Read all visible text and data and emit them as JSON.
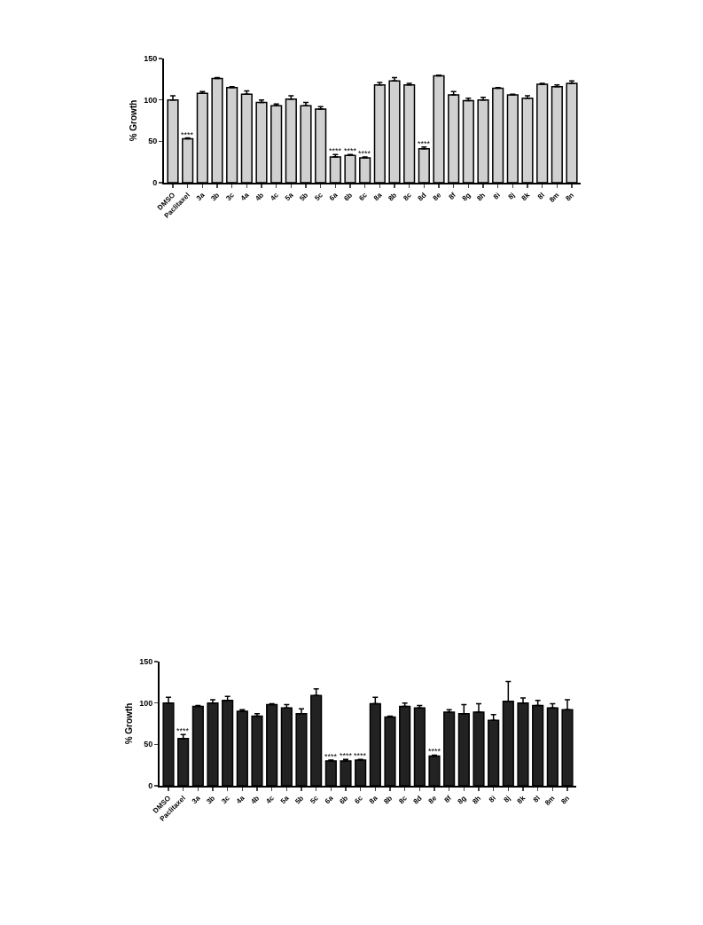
{
  "chart_data": [
    {
      "type": "bar",
      "ylabel": "% Growth",
      "categories": [
        "DMSO",
        "Paclitaxel",
        "3a",
        "3b",
        "3c",
        "4a",
        "4b",
        "4c",
        "5a",
        "5b",
        "5c",
        "6a",
        "6b",
        "6c",
        "8a",
        "8b",
        "8c",
        "8d",
        "8e",
        "8f",
        "8g",
        "8h",
        "8i",
        "8j",
        "8k",
        "8l",
        "8m",
        "8n"
      ],
      "series": [
        {
          "color": "#d0d0d0",
          "values": [
            100,
            53,
            108,
            126,
            115,
            107,
            97,
            93,
            101,
            93,
            89,
            31,
            33,
            30,
            118,
            123,
            118,
            41,
            129,
            106,
            99,
            100,
            114,
            106,
            102,
            119,
            116,
            120
          ],
          "errors": [
            [
              100,
              105
            ],
            [
              53,
              54
            ],
            [
              108,
              110
            ],
            [
              126,
              127
            ],
            [
              115,
              116
            ],
            [
              107,
              111
            ],
            [
              97,
              100
            ],
            [
              93,
              95
            ],
            [
              101,
              105
            ],
            [
              93,
              97
            ],
            [
              89,
              92
            ],
            [
              31,
              34
            ],
            [
              33,
              34
            ],
            [
              30,
              31
            ],
            [
              118,
              121
            ],
            [
              123,
              127
            ],
            [
              118,
              120
            ],
            [
              41,
              43
            ],
            [
              129,
              130
            ],
            [
              106,
              110
            ],
            [
              99,
              102
            ],
            [
              100,
              103
            ],
            [
              114,
              115
            ],
            [
              106,
              107
            ],
            [
              102,
              105
            ],
            [
              119,
              120
            ],
            [
              116,
              118
            ],
            [
              120,
              123
            ]
          ]
        }
      ],
      "ylim": [
        0,
        150
      ],
      "yticks": [
        0,
        50,
        100,
        150
      ],
      "grid": false,
      "annotations": [
        {
          "text": "****",
          "x": "Paclitaxel",
          "y": 54
        },
        {
          "text": "****",
          "x": "6a",
          "y": 34
        },
        {
          "text": "****",
          "x": "6b",
          "y": 34
        },
        {
          "text": "****",
          "x": "6c",
          "y": 31
        },
        {
          "text": "****",
          "x": "8d",
          "y": 43
        }
      ]
    },
    {
      "type": "bar",
      "ylabel": "% Growth",
      "categories": [
        "DMSO",
        "Paclitaxel",
        "3a",
        "3b",
        "3c",
        "4a",
        "4b",
        "4c",
        "5a",
        "5b",
        "5c",
        "6a",
        "6b",
        "6c",
        "8a",
        "8b",
        "8c",
        "8d",
        "8e",
        "8f",
        "8g",
        "8h",
        "8i",
        "8j",
        "8k",
        "8l",
        "8m",
        "8n"
      ],
      "series": [
        {
          "color": "#222222",
          "values": [
            100,
            57,
            96,
            100,
            103,
            90,
            84,
            98,
            94,
            87,
            109,
            30,
            30,
            31,
            99,
            83,
            96,
            94,
            36,
            89,
            87,
            89,
            79,
            102,
            100,
            97,
            94,
            92
          ],
          "errors": [
            [
              100,
              107
            ],
            [
              57,
              62
            ],
            [
              96,
              97
            ],
            [
              100,
              104
            ],
            [
              103,
              108
            ],
            [
              90,
              92
            ],
            [
              84,
              87
            ],
            [
              98,
              99
            ],
            [
              94,
              98
            ],
            [
              87,
              93
            ],
            [
              109,
              117
            ],
            [
              30,
              31
            ],
            [
              30,
              32
            ],
            [
              31,
              32
            ],
            [
              99,
              107
            ],
            [
              83,
              84
            ],
            [
              96,
              100
            ],
            [
              94,
              97
            ],
            [
              36,
              37
            ],
            [
              89,
              92
            ],
            [
              87,
              98
            ],
            [
              89,
              99
            ],
            [
              79,
              86
            ],
            [
              102,
              126
            ],
            [
              100,
              106
            ],
            [
              97,
              103
            ],
            [
              94,
              99
            ],
            [
              92,
              104
            ]
          ]
        }
      ],
      "ylim": [
        0,
        150
      ],
      "yticks": [
        0,
        50,
        100,
        150
      ],
      "grid": false,
      "annotations": [
        {
          "text": "****",
          "x": "Paclitaxel",
          "y": 62
        },
        {
          "text": "****",
          "x": "6a",
          "y": 31
        },
        {
          "text": "****",
          "x": "6b",
          "y": 32
        },
        {
          "text": "****",
          "x": "6c",
          "y": 32
        },
        {
          "text": "****",
          "x": "8e",
          "y": 37
        }
      ]
    }
  ]
}
